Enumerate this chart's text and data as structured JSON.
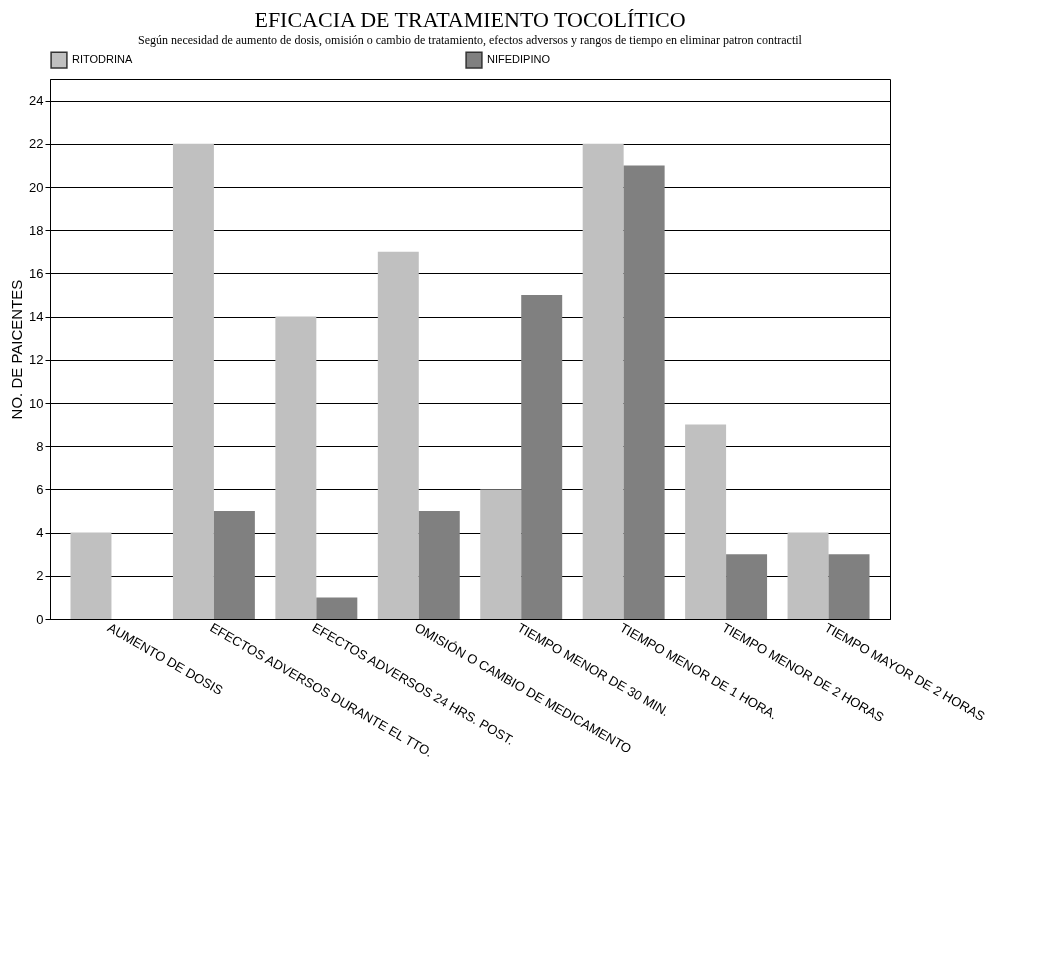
{
  "chart_data": {
    "type": "bar",
    "title": "EFICACIA DE TRATAMIENTO TOCOLÍTICO",
    "subtitle": "Según necesidad de aumento de dosis, omisión o cambio de tratamiento, efectos adversos y rangos de tiempo en eliminar patron contractil",
    "ylabel": "NO. DE PAICENTES",
    "categories": [
      "AUMENTO DE DOSIS",
      "EFECTOS ADVERSOS DURANTE EL TTO.",
      "EFECTOS ADVERSOS 24 HRS. POST.",
      "OMISIÓN O CAMBIO DE MEDICAMENTO",
      "TIEMPO MENOR DE 30 MIN.",
      "TIEMPO MENOR DE 1 HORA.",
      "TIEMPO MENOR DE 2 HORAS",
      "TIEMPO MAYOR DE 2 HORAS"
    ],
    "series": [
      {
        "name": "RITODRINA",
        "color": "#c0c0c0",
        "values": [
          4,
          22,
          14,
          17,
          6,
          22,
          9,
          4
        ]
      },
      {
        "name": "NIFEDIPINO",
        "color": "#808080",
        "values": [
          0,
          5,
          1,
          5,
          15,
          21,
          3,
          3
        ]
      }
    ],
    "ylim": [
      0,
      25
    ],
    "yticks": [
      0,
      2,
      4,
      6,
      8,
      10,
      12,
      14,
      16,
      18,
      20,
      22,
      24
    ],
    "grid": "y",
    "legend": "top"
  }
}
